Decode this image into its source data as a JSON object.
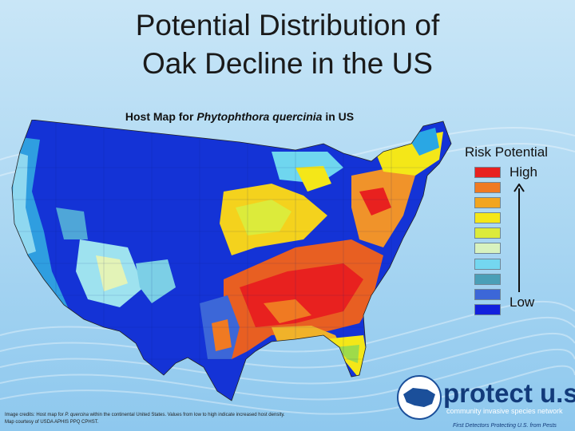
{
  "slide": {
    "title_line1": "Potential Distribution of",
    "title_line2": "Oak Decline in the US",
    "subtitle_prefix": "Host Map for ",
    "subtitle_species": "Phytophthora quercinia",
    "subtitle_suffix": " in US"
  },
  "legend": {
    "title": "Risk Potential",
    "high_label": "High",
    "low_label": "Low",
    "colors": [
      "#e8211f",
      "#f07a22",
      "#f2a51f",
      "#f4e718",
      "#dceb3b",
      "#d8f2bf",
      "#74d7f0",
      "#4a9fb7",
      "#3c67d8",
      "#1220dd"
    ]
  },
  "credits": {
    "line1_prefix": "Image credits: Host map for ",
    "line1_species": "P. quercina",
    "line1_suffix": " within the continental United States. Values from low to high indicate increased host density.",
    "line2": "Map courtesy of USDA APHIS PPQ CPHST."
  },
  "logo": {
    "wordmark": "protect u.s.",
    "tagline": "community invasive species network",
    "footer": "First Detectors Protecting U.S. from Pests"
  }
}
